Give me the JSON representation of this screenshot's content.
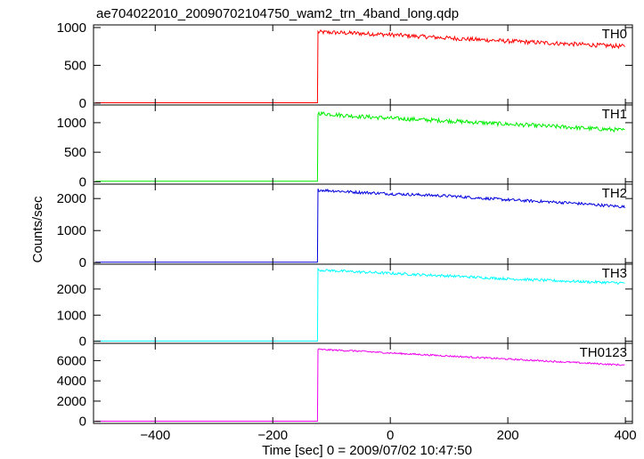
{
  "chart_data": {
    "type": "line",
    "title": "ae704022010_20090702104750_wam2_trn_4band_long.qdp",
    "xlabel": "Time [sec] 0 = 2009/07/02 10:47:50",
    "ylabel": "Counts/sec",
    "xlim": [
      -505,
      412
    ],
    "x_ticks": [
      -400,
      -200,
      0,
      200,
      400
    ],
    "x_tick_labels": [
      "−400",
      "−200",
      "0",
      "200",
      "400"
    ],
    "burst_start": -123,
    "x_end": 400,
    "panels": [
      {
        "name": "TH0",
        "color": "#ff0000",
        "ylim": [
          -25,
          1035
        ],
        "yticks": [
          0,
          500,
          1000
        ],
        "baseline": 5,
        "points": [
          [
            -123,
            940
          ],
          [
            -60,
            925
          ],
          [
            0,
            905
          ],
          [
            100,
            860
          ],
          [
            200,
            820
          ],
          [
            300,
            785
          ],
          [
            400,
            750
          ]
        ],
        "noise": 28
      },
      {
        "name": "TH1",
        "color": "#00ee00",
        "ylim": [
          -40,
          1300
        ],
        "yticks": [
          0,
          500,
          1000
        ],
        "baseline": 8,
        "points": [
          [
            -123,
            1160
          ],
          [
            -60,
            1110
          ],
          [
            0,
            1075
          ],
          [
            100,
            1030
          ],
          [
            200,
            975
          ],
          [
            300,
            925
          ],
          [
            400,
            870
          ]
        ],
        "noise": 35
      },
      {
        "name": "TH2",
        "color": "#0000dd",
        "ylim": [
          -50,
          2450
        ],
        "yticks": [
          0,
          1000,
          2000
        ],
        "baseline": 10,
        "points": [
          [
            -123,
            2270
          ],
          [
            -60,
            2200
          ],
          [
            0,
            2150
          ],
          [
            100,
            2080
          ],
          [
            200,
            1960
          ],
          [
            300,
            1870
          ],
          [
            400,
            1740
          ]
        ],
        "noise": 45
      },
      {
        "name": "TH3",
        "color": "#00ffff",
        "ylim": [
          -80,
          2950
        ],
        "yticks": [
          0,
          1000,
          2000
        ],
        "baseline": 10,
        "points": [
          [
            -123,
            2730
          ],
          [
            -60,
            2660
          ],
          [
            0,
            2600
          ],
          [
            100,
            2500
          ],
          [
            200,
            2390
          ],
          [
            300,
            2300
          ],
          [
            400,
            2230
          ]
        ],
        "noise": 50
      },
      {
        "name": "TH0123",
        "color": "#ee00ee",
        "ylim": [
          -200,
          7700
        ],
        "yticks": [
          0,
          2000,
          4000,
          6000
        ],
        "baseline": 20,
        "points": [
          [
            -123,
            7100
          ],
          [
            -60,
            6950
          ],
          [
            0,
            6750
          ],
          [
            100,
            6450
          ],
          [
            200,
            6150
          ],
          [
            300,
            5850
          ],
          [
            400,
            5550
          ]
        ],
        "noise": 80
      }
    ]
  }
}
